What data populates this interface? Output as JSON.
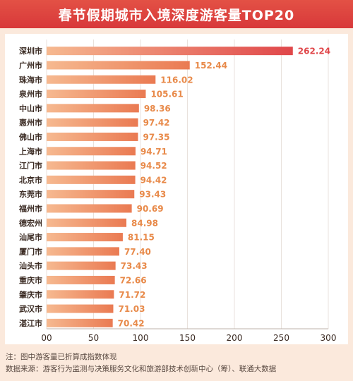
{
  "title": "春节假期城市入境深度游客量TOP20",
  "footer": {
    "note": "注：图中游客量已折算成指数体现",
    "source": "数据来源：游客行为监测与决策服务文化和旅游部技术创新中心（筹）、联通大数据"
  },
  "colors": {
    "background": "#fbe9dc",
    "title_bg": "#d8383a",
    "top_bar": "#e0474a",
    "bar_high": "#ea7a52",
    "bar_low": "#f6b990",
    "value_label": "#e88a4a",
    "top_value_label": "#e0474a"
  },
  "chart_data": {
    "type": "bar",
    "orientation": "horizontal",
    "categories": [
      "深圳市",
      "广州市",
      "珠海市",
      "泉州市",
      "中山市",
      "惠州市",
      "佛山市",
      "上海市",
      "江门市",
      "北京市",
      "东莞市",
      "福州市",
      "德宏州",
      "汕尾市",
      "厦门市",
      "汕头市",
      "重庆市",
      "肇庆市",
      "武汉市",
      "湛江市"
    ],
    "values": [
      262.24,
      152.44,
      116.02,
      105.61,
      98.36,
      97.42,
      97.35,
      94.71,
      94.52,
      94.42,
      93.43,
      90.69,
      84.98,
      81.15,
      77.4,
      73.43,
      72.66,
      71.72,
      71.03,
      70.42
    ],
    "value_labels": [
      "262.24",
      "152.44",
      "116.02",
      "105.61",
      "98.36",
      "97.42",
      "97.35",
      "94.71",
      "94.52",
      "94.42",
      "93.43",
      "90.69",
      "84.98",
      "81.15",
      "77.40",
      "73.43",
      "72.66",
      "71.72",
      "71.03",
      "70.42"
    ],
    "xlim": [
      0,
      300
    ],
    "x_ticks": [
      0,
      50,
      100,
      150,
      200,
      250,
      300
    ],
    "x_tick_labels": [
      "00",
      "50",
      "100",
      "150",
      "200",
      "250",
      "300"
    ],
    "grid": true,
    "legend": "none"
  }
}
